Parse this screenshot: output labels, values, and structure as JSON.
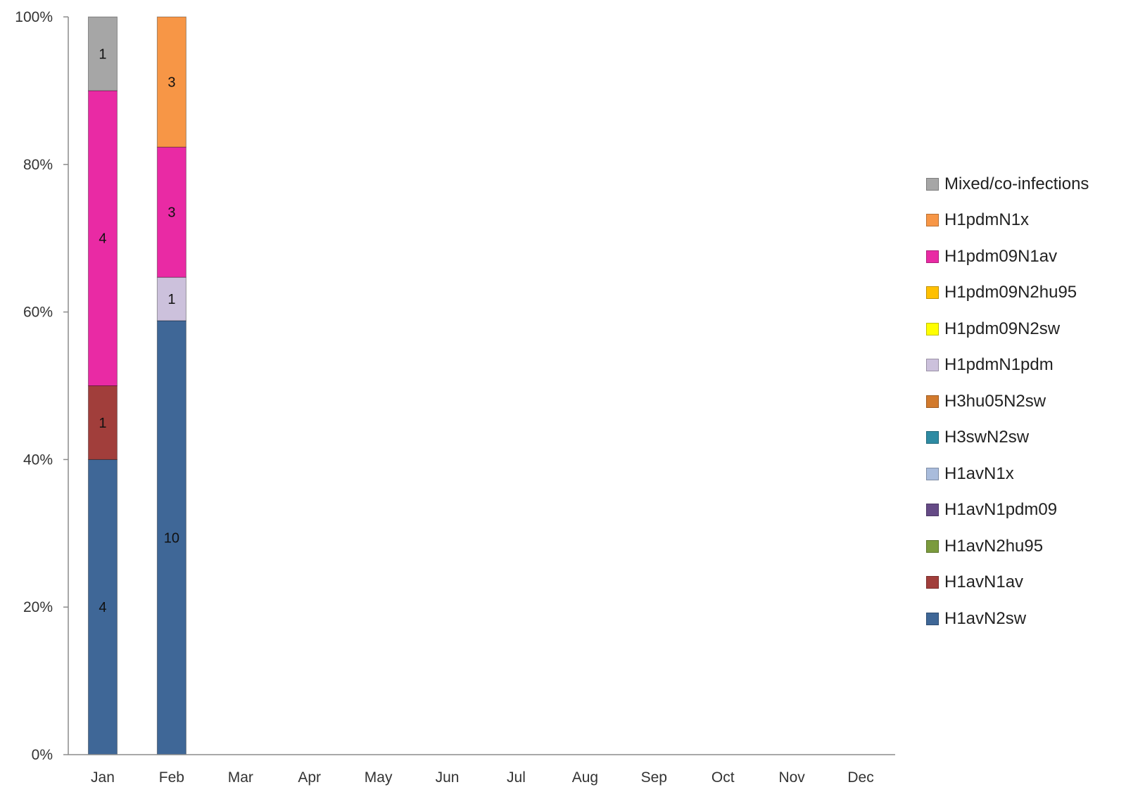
{
  "chart_data": {
    "type": "bar",
    "stacked": "percent",
    "title": "",
    "xlabel": "",
    "ylabel": "",
    "ylim": [
      0,
      100
    ],
    "yticks": [
      "0%",
      "20%",
      "40%",
      "60%",
      "80%",
      "100%"
    ],
    "categories": [
      "Jan",
      "Feb",
      "Mar",
      "Apr",
      "May",
      "Jun",
      "Jul",
      "Aug",
      "Sep",
      "Oct",
      "Nov",
      "Dec"
    ],
    "legend_position": "right",
    "grid": false,
    "series": [
      {
        "name": "H1avN2sw",
        "color": "#3f6797",
        "values": [
          4,
          10,
          0,
          0,
          0,
          0,
          0,
          0,
          0,
          0,
          0,
          0
        ]
      },
      {
        "name": "H1avN1av",
        "color": "#a13e3b",
        "values": [
          1,
          0,
          0,
          0,
          0,
          0,
          0,
          0,
          0,
          0,
          0,
          0
        ]
      },
      {
        "name": "H1avN2hu95",
        "color": "#7b9b3d",
        "values": [
          0,
          0,
          0,
          0,
          0,
          0,
          0,
          0,
          0,
          0,
          0,
          0
        ]
      },
      {
        "name": "H1avN1pdm09",
        "color": "#654a86",
        "values": [
          0,
          0,
          0,
          0,
          0,
          0,
          0,
          0,
          0,
          0,
          0,
          0
        ]
      },
      {
        "name": "H1avN1x",
        "color": "#a9bcdc",
        "values": [
          0,
          0,
          0,
          0,
          0,
          0,
          0,
          0,
          0,
          0,
          0,
          0
        ]
      },
      {
        "name": "H3swN2sw",
        "color": "#2e8ba3",
        "values": [
          0,
          0,
          0,
          0,
          0,
          0,
          0,
          0,
          0,
          0,
          0,
          0
        ]
      },
      {
        "name": "H3hu05N2sw",
        "color": "#d27a2d",
        "values": [
          0,
          0,
          0,
          0,
          0,
          0,
          0,
          0,
          0,
          0,
          0,
          0
        ]
      },
      {
        "name": "H1pdmN1pdm",
        "color": "#ccc1dc",
        "values": [
          0,
          1,
          0,
          0,
          0,
          0,
          0,
          0,
          0,
          0,
          0,
          0
        ]
      },
      {
        "name": "H1pdm09N2sw",
        "color": "#ffff00",
        "values": [
          0,
          0,
          0,
          0,
          0,
          0,
          0,
          0,
          0,
          0,
          0,
          0
        ]
      },
      {
        "name": "H1pdm09N2hu95",
        "color": "#ffc000",
        "values": [
          0,
          0,
          0,
          0,
          0,
          0,
          0,
          0,
          0,
          0,
          0,
          0
        ]
      },
      {
        "name": "H1pdm09N1av",
        "color": "#e92aa4",
        "values": [
          4,
          3,
          0,
          0,
          0,
          0,
          0,
          0,
          0,
          0,
          0,
          0
        ]
      },
      {
        "name": "H1pdmN1x",
        "color": "#f79646",
        "values": [
          0,
          3,
          0,
          0,
          0,
          0,
          0,
          0,
          0,
          0,
          0,
          0
        ]
      },
      {
        "name": "Mixed/co-infections",
        "color": "#a6a6a6",
        "values": [
          1,
          0,
          0,
          0,
          0,
          0,
          0,
          0,
          0,
          0,
          0,
          0
        ]
      }
    ]
  }
}
